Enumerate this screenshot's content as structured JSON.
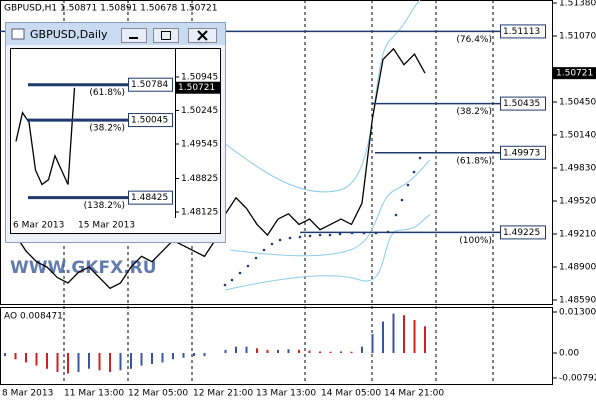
{
  "header": "GBPUSD,H1  1.50871 1.50891 1.50678 1.50721",
  "watermark": "WWW.GKFX.RU",
  "main": {
    "price_ticks": [
      {
        "value": 1.5138,
        "label": "1.51380"
      },
      {
        "value": 1.5107,
        "label": "1.51070"
      },
      {
        "value": 1.5045,
        "label": "1.50450"
      },
      {
        "value": 1.5014,
        "label": "1.50140"
      },
      {
        "value": 1.4983,
        "label": "1.49830"
      },
      {
        "value": 1.4952,
        "label": "1.49520"
      },
      {
        "value": 1.4921,
        "label": "1.49210"
      },
      {
        "value": 1.489,
        "label": "1.48900"
      },
      {
        "value": 1.4859,
        "label": "1.48590"
      }
    ],
    "current_price": 1.50721,
    "closes": [
      1.4925,
      1.492,
      1.4905,
      1.4895,
      1.489,
      1.488,
      1.4875,
      1.4885,
      1.489,
      1.488,
      1.487,
      1.4875,
      1.489,
      1.49,
      1.4895,
      1.4905,
      1.4915,
      1.491,
      1.4905,
      1.49,
      1.4915,
      1.494,
      1.4955,
      1.4945,
      1.493,
      1.492,
      1.4935,
      1.494,
      1.493,
      1.4935,
      1.4925,
      1.493,
      1.4935,
      1.493,
      1.495,
      1.503,
      1.5085,
      1.5095,
      1.508,
      1.509,
      1.50721
    ],
    "fib_levels": [
      {
        "label": "(76.4%)",
        "price": 1.51113
      },
      {
        "label": "(38.2%)",
        "price": 1.50435
      },
      {
        "label": "(61.8%)",
        "price": 1.49973
      },
      {
        "label": "(100%)",
        "price": 1.49225
      }
    ],
    "time_labels": [
      "8 Mar 2013",
      "11 Mar 13:00",
      "12 Mar 05:00",
      "12 Mar 21:00",
      "13 Mar 13:00",
      "14 Mar 05:00",
      "14 Mar 21:00"
    ]
  },
  "ao": {
    "title": "AO 0.008471",
    "ticks": [
      0.013009,
      {
        "value": 0,
        "label": "0.00"
      },
      -0.007921
    ],
    "values": [
      -0.001,
      -0.002,
      -0.003,
      -0.004,
      -0.005,
      -0.006,
      -0.0065,
      -0.006,
      -0.005,
      -0.0055,
      -0.006,
      -0.0055,
      -0.005,
      -0.004,
      -0.0035,
      -0.003,
      -0.002,
      -0.0015,
      -0.001,
      -0.001,
      0.0,
      0.001,
      0.002,
      0.002,
      0.0015,
      0.001,
      0.001,
      0.0012,
      0.001,
      0.0008,
      0.0005,
      0.0004,
      0.0005,
      0.0004,
      0.002,
      0.006,
      0.01,
      0.0125,
      0.012,
      0.0105,
      0.008471
    ]
  },
  "daily_window": {
    "title": "GBPUSD,Daily",
    "price_ticks": [
      1.50945,
      1.50245,
      1.49545,
      1.48825,
      1.48125
    ],
    "current_price": 1.50721,
    "closes": [
      1.496,
      1.502,
      1.5,
      1.49,
      1.487,
      1.488,
      1.493,
      1.49,
      1.487,
      1.5072
    ],
    "fib_levels": [
      {
        "label": "(61.8%)",
        "price": 1.50784
      },
      {
        "label": "(38.2%)",
        "price": 1.50045
      },
      {
        "label": "(138.2%)",
        "price": 1.48425
      }
    ],
    "date_labels": [
      "6 Mar 2013",
      "15 Mar 2013"
    ]
  }
}
